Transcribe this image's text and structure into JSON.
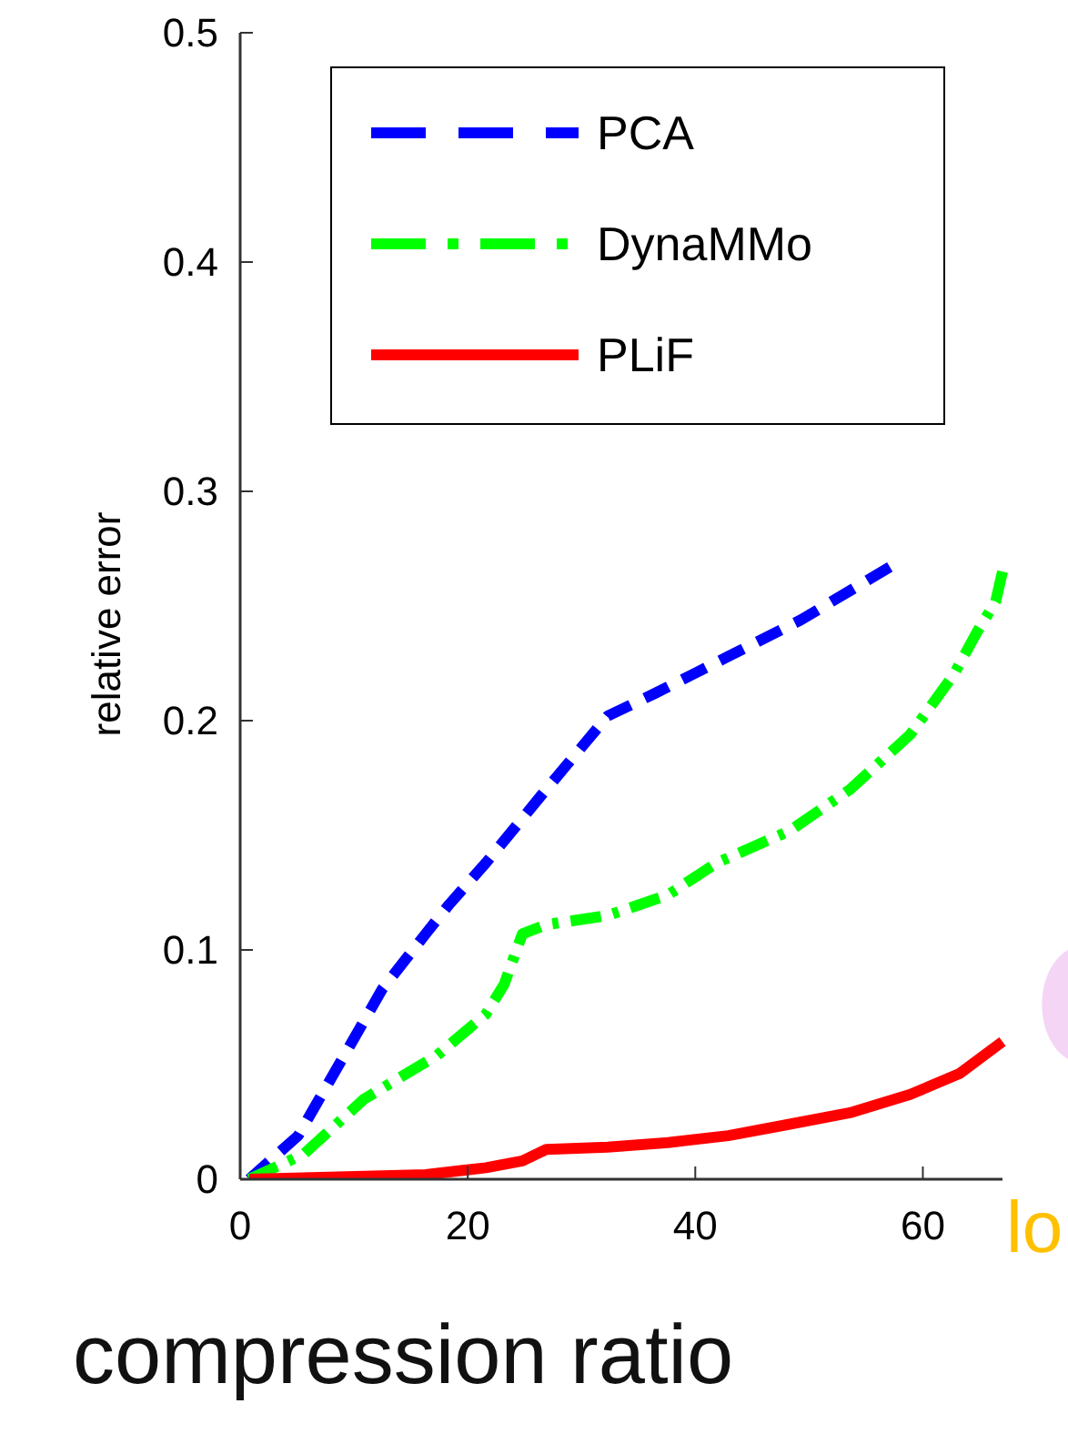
{
  "chart_data": {
    "type": "line",
    "xlabel": "compression ratio",
    "ylabel": "relative error",
    "xlim": [
      0,
      67
    ],
    "ylim": [
      0,
      0.5
    ],
    "xticks": [
      0,
      20,
      40,
      60
    ],
    "yticks": [
      0,
      0.1,
      0.2,
      0.3,
      0.4,
      0.5
    ],
    "grid": false,
    "legend": "top left",
    "marker": "none",
    "annotations": [
      "lo"
    ],
    "series": [
      {
        "name": "PCA",
        "color": "#0000ff",
        "line_style": "dashed",
        "x": [
          0.8,
          5.1,
          8.8,
          12.5,
          16.3,
          18.4,
          21.6,
          26.4,
          30.1,
          32.3,
          36.5,
          42.9,
          49.3,
          57.1
        ],
        "values": [
          0,
          0.019,
          0.051,
          0.083,
          0.107,
          0.12,
          0.138,
          0.167,
          0.189,
          0.202,
          0.212,
          0.228,
          0.244,
          0.267
        ]
      },
      {
        "name": "DynaMMo",
        "color": "#00ff00",
        "line_style": "dashdot",
        "x": [
          0.8,
          5.6,
          10.9,
          17.3,
          21.6,
          23.2,
          24.8,
          26.9,
          32.3,
          37.6,
          41.9,
          48.3,
          53.6,
          58.9,
          62.7,
          64.8,
          66.4,
          67
        ],
        "values": [
          0,
          0.011,
          0.035,
          0.054,
          0.072,
          0.085,
          0.107,
          0.111,
          0.115,
          0.124,
          0.138,
          0.152,
          0.17,
          0.194,
          0.22,
          0.239,
          0.252,
          0.265
        ]
      },
      {
        "name": "PLiF",
        "color": "#ff0000",
        "line_style": "solid",
        "x": [
          0.8,
          16.3,
          21.6,
          24.8,
          26.9,
          32.3,
          37.6,
          42.9,
          48.3,
          53.6,
          58.9,
          63.2,
          67
        ],
        "values": [
          0,
          0.002,
          0.005,
          0.008,
          0.013,
          0.014,
          0.016,
          0.019,
          0.024,
          0.029,
          0.037,
          0.046,
          0.06
        ]
      }
    ]
  }
}
